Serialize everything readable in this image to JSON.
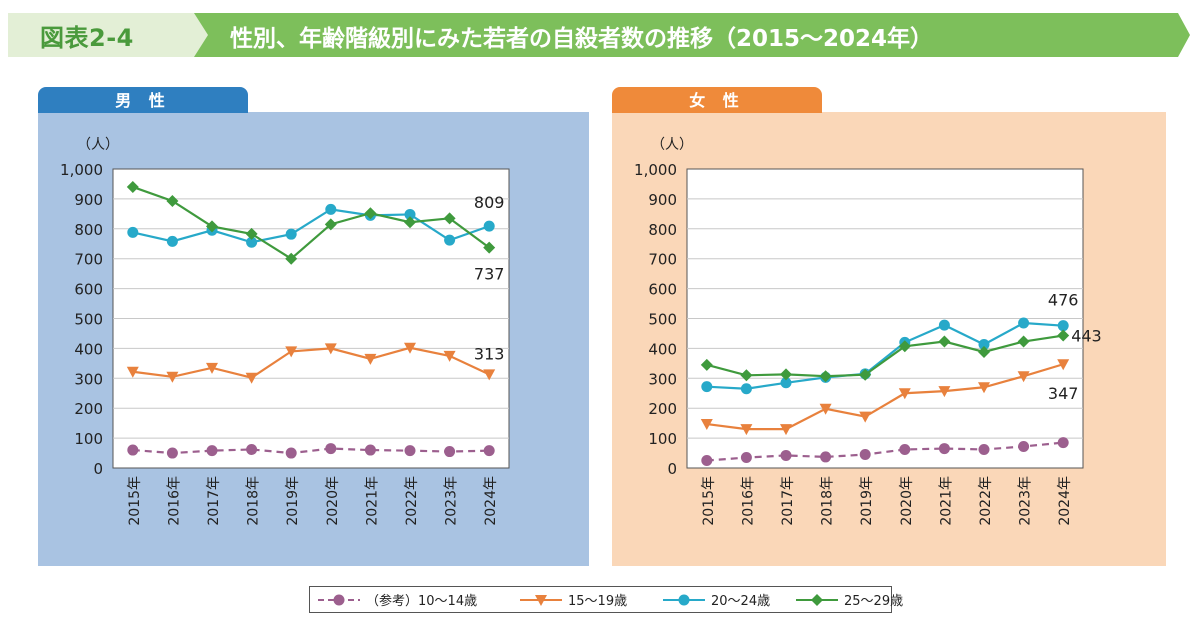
{
  "header": {
    "figure_label": "図表2-4",
    "title": "性別、年齢階級別にみた若者の自殺者数の推移（2015〜2024年）",
    "colors": {
      "band": "#7dbf5b",
      "label_band": "#e3efd6",
      "label_text": "#4a9a3c"
    }
  },
  "panels": [
    {
      "tab": "男 性",
      "tab_color": "#2f7fc0",
      "bg_color": "#a9c3e2"
    },
    {
      "tab": "女 性",
      "tab_color": "#ef8a3a",
      "bg_color": "#fad7b8"
    }
  ],
  "legend": {
    "items": [
      {
        "label": "（参考）10〜14歳",
        "color": "#9c5f8e",
        "marker": "circle",
        "dashed": true
      },
      {
        "label": "15〜19歳",
        "color": "#e8813d",
        "marker": "triangle-down",
        "dashed": false
      },
      {
        "label": "20〜24歳",
        "color": "#27a9c9",
        "marker": "circle",
        "dashed": false
      },
      {
        "label": "25〜29歳",
        "color": "#3f9a3d",
        "marker": "diamond",
        "dashed": false
      }
    ]
  },
  "chart_data": [
    {
      "type": "line",
      "panel": "男 性",
      "unit_label": "（人）",
      "ylim": [
        0,
        1000
      ],
      "yticks": [
        "0",
        "100",
        "200",
        "300",
        "400",
        "500",
        "600",
        "700",
        "800",
        "900",
        "1,000"
      ],
      "categories": [
        "2015年",
        "2016年",
        "2017年",
        "2018年",
        "2019年",
        "2020年",
        "2021年",
        "2022年",
        "2023年",
        "2024年"
      ],
      "grid": true,
      "series": [
        {
          "name": "（参考）10〜14歳",
          "values": [
            60,
            50,
            58,
            62,
            50,
            65,
            60,
            58,
            55,
            58
          ]
        },
        {
          "name": "15〜19歳",
          "values": [
            322,
            305,
            335,
            302,
            390,
            400,
            365,
            402,
            375,
            313
          ]
        },
        {
          "name": "20〜24歳",
          "values": [
            788,
            758,
            795,
            755,
            782,
            865,
            845,
            848,
            762,
            809
          ]
        },
        {
          "name": "25〜29歳",
          "values": [
            940,
            893,
            808,
            783,
            700,
            815,
            852,
            822,
            835,
            737
          ]
        }
      ],
      "annotations": [
        {
          "series": "20〜24歳",
          "text": "809"
        },
        {
          "series": "25〜29歳",
          "text": "737"
        },
        {
          "series": "15〜19歳",
          "text": "313"
        }
      ]
    },
    {
      "type": "line",
      "panel": "女 性",
      "unit_label": "（人）",
      "ylim": [
        0,
        1000
      ],
      "yticks": [
        "0",
        "100",
        "200",
        "300",
        "400",
        "500",
        "600",
        "700",
        "800",
        "900",
        "1,000"
      ],
      "categories": [
        "2015年",
        "2016年",
        "2017年",
        "2018年",
        "2019年",
        "2020年",
        "2021年",
        "2022年",
        "2023年",
        "2024年"
      ],
      "grid": true,
      "series": [
        {
          "name": "（参考）10〜14歳",
          "values": [
            25,
            35,
            42,
            37,
            45,
            62,
            65,
            62,
            72,
            85
          ]
        },
        {
          "name": "15〜19歳",
          "values": [
            147,
            130,
            130,
            198,
            172,
            250,
            257,
            270,
            307,
            347
          ]
        },
        {
          "name": "20〜24歳",
          "values": [
            272,
            265,
            285,
            303,
            315,
            420,
            478,
            413,
            485,
            476
          ]
        },
        {
          "name": "25〜29歳",
          "values": [
            345,
            310,
            313,
            307,
            312,
            407,
            423,
            388,
            423,
            443
          ]
        }
      ],
      "annotations": [
        {
          "series": "20〜24歳",
          "text": "476"
        },
        {
          "series": "25〜29歳",
          "text": "443"
        },
        {
          "series": "15〜19歳",
          "text": "347"
        }
      ]
    }
  ]
}
